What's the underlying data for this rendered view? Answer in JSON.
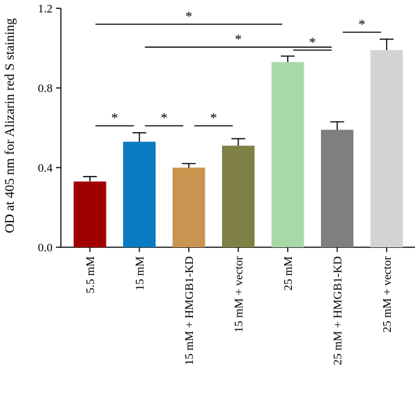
{
  "chart_data": {
    "type": "bar",
    "title": "",
    "xlabel": "",
    "ylabel": "OD at 405 nm for Alizarin red S staining",
    "ylim": [
      0,
      1.2
    ],
    "yticks": [
      "0.0",
      "0.4",
      "0.8",
      "1.2"
    ],
    "grid": false,
    "categories": [
      "5.5 mM",
      "15 mM",
      "15 mM + HMGB1-KD",
      "15 mM + vector",
      "25 mM",
      "25 mM + HMGB1-KD",
      "25 mM + vector"
    ],
    "values": [
      0.33,
      0.53,
      0.4,
      0.51,
      0.93,
      0.59,
      0.99
    ],
    "errors": [
      0.025,
      0.045,
      0.02,
      0.035,
      0.03,
      0.04,
      0.055
    ],
    "colors": [
      "#a00000",
      "#0a7bc2",
      "#c8944f",
      "#7f8044",
      "#a8d8a8",
      "#7f7f7f",
      "#d3d3d3"
    ],
    "significance": [
      {
        "from": 0,
        "to": 4,
        "y": 1.12,
        "label": "*"
      },
      {
        "from": 1,
        "to": 5,
        "y": 1.005,
        "label": "*"
      },
      {
        "from": 0,
        "to": 1,
        "y": 0.61,
        "label": "*"
      },
      {
        "from": 1,
        "to": 2,
        "y": 0.61,
        "label": "*"
      },
      {
        "from": 2,
        "to": 3,
        "y": 0.61,
        "label": "*"
      },
      {
        "from": 4,
        "to": 5,
        "y": 0.99,
        "label": "*"
      },
      {
        "from": 5,
        "to": 6,
        "y": 1.08,
        "label": "*"
      }
    ]
  }
}
